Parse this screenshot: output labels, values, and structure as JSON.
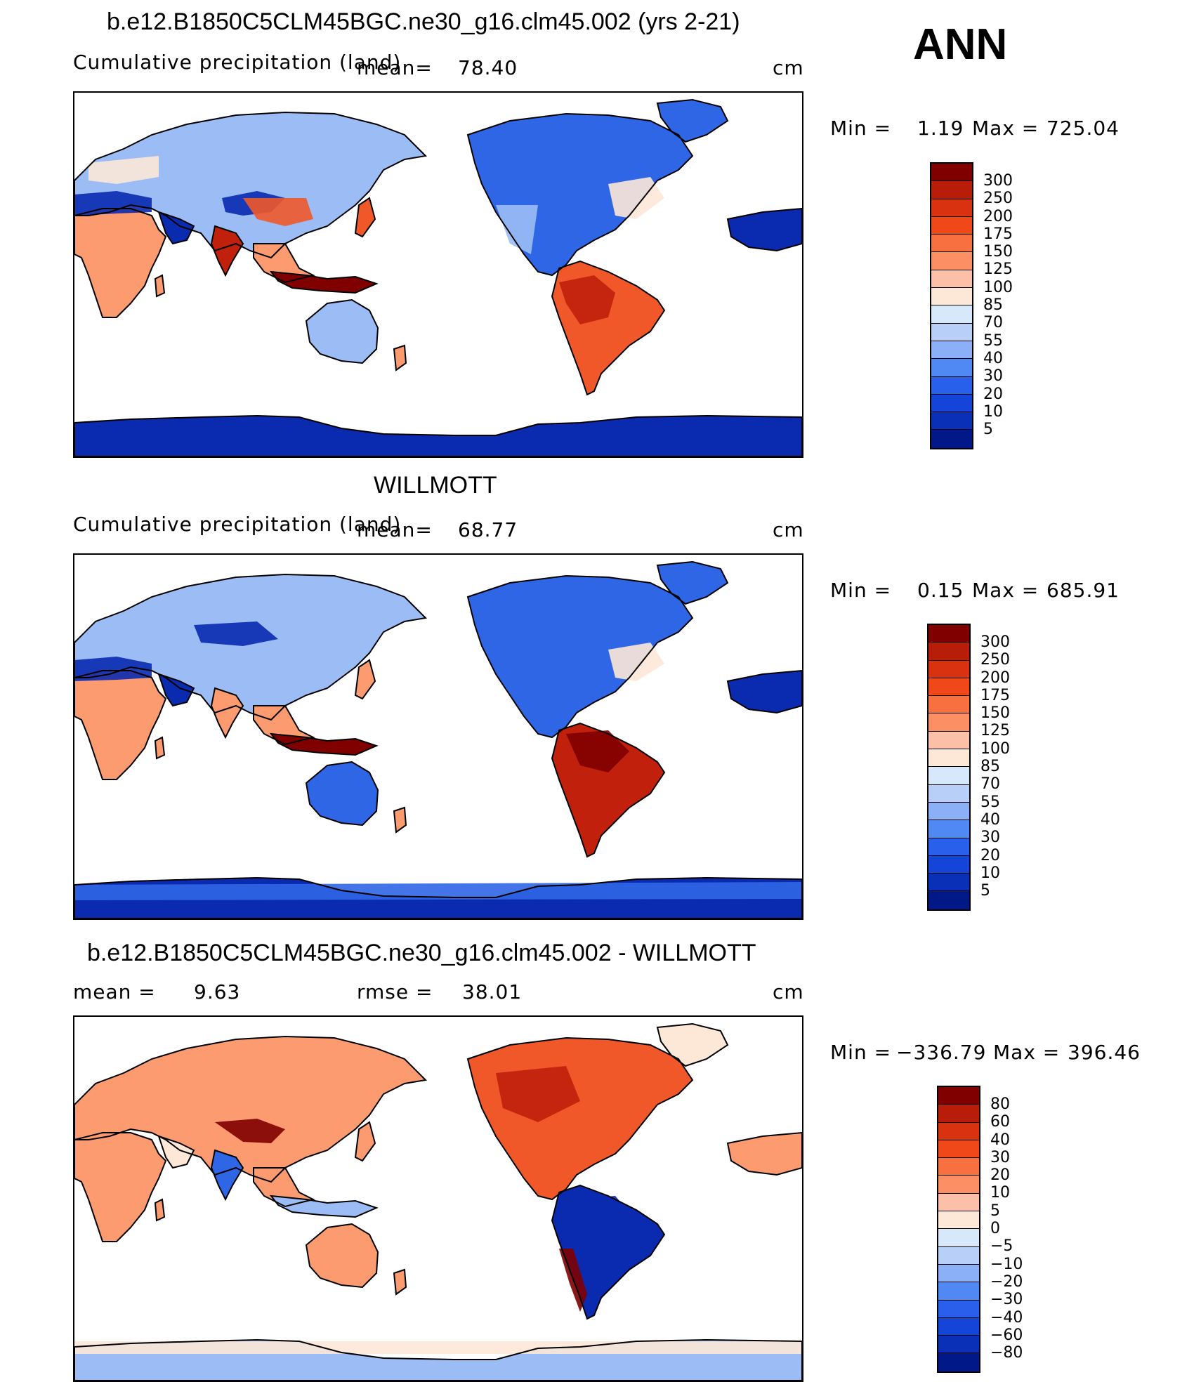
{
  "season": "ANN",
  "units": "cm",
  "panels": [
    {
      "title": "b.e12.B1850C5CLM45BGC.ne30_g16.clm45.002 (yrs 2-21)",
      "variable": "Cumulative precipitation (land)",
      "mean_label": "mean=",
      "mean_value": "78.40",
      "min_label": "Min =",
      "min_value": "1.19",
      "max_label": "Max =",
      "max_value": "725.04"
    },
    {
      "title": "WILLMOTT",
      "variable": "Cumulative precipitation (land)",
      "mean_label": "mean=",
      "mean_value": "68.77",
      "min_label": "Min =",
      "min_value": "0.15",
      "max_label": "Max =",
      "max_value": "685.91"
    },
    {
      "title": "b.e12.B1850C5CLM45BGC.ne30_g16.clm45.002 - WILLMOTT",
      "mean_label": "mean =",
      "mean_value": "9.63",
      "rmse_label": "rmse =",
      "rmse_value": "38.01",
      "min_label": "Min =",
      "min_value": "−336.79",
      "max_label": "Max =",
      "max_value": "396.46"
    }
  ],
  "colorbars": {
    "precip": {
      "labels": [
        "300",
        "250",
        "200",
        "175",
        "150",
        "125",
        "100",
        "85",
        "70",
        "55",
        "40",
        "30",
        "20",
        "10",
        "5"
      ],
      "colors": [
        "#800000",
        "#b81d0a",
        "#d83210",
        "#f04818",
        "#f87040",
        "#fc9064",
        "#fcc0a8",
        "#fde8d8",
        "#d6e8fa",
        "#b8d0f8",
        "#8cb0f8",
        "#5088f4",
        "#2860ec",
        "#1444d8",
        "#0a30b8",
        "#001888"
      ]
    },
    "diff": {
      "labels": [
        "80",
        "60",
        "40",
        "30",
        "20",
        "10",
        "5",
        "0",
        "−5",
        "−10",
        "−20",
        "−30",
        "−40",
        "−60",
        "−80"
      ],
      "colors": [
        "#800000",
        "#b81d0a",
        "#d83210",
        "#f04818",
        "#f87040",
        "#fc9064",
        "#fcc0a8",
        "#fde8d8",
        "#d6e8fa",
        "#b8d0f8",
        "#8cb0f8",
        "#5088f4",
        "#2860ec",
        "#1444d8",
        "#0a30b8",
        "#001888"
      ]
    }
  },
  "map_colors": {
    "ocean": "#ffffff",
    "coast": "#000000",
    "deep_blue": "#0a2ab0",
    "blue": "#2f66e6",
    "light_blue": "#9cbcf6",
    "pale": "#fde8d8",
    "salmon": "#fc9a70",
    "orange": "#f0582a",
    "red": "#c0200c",
    "dark_red": "#800000"
  }
}
